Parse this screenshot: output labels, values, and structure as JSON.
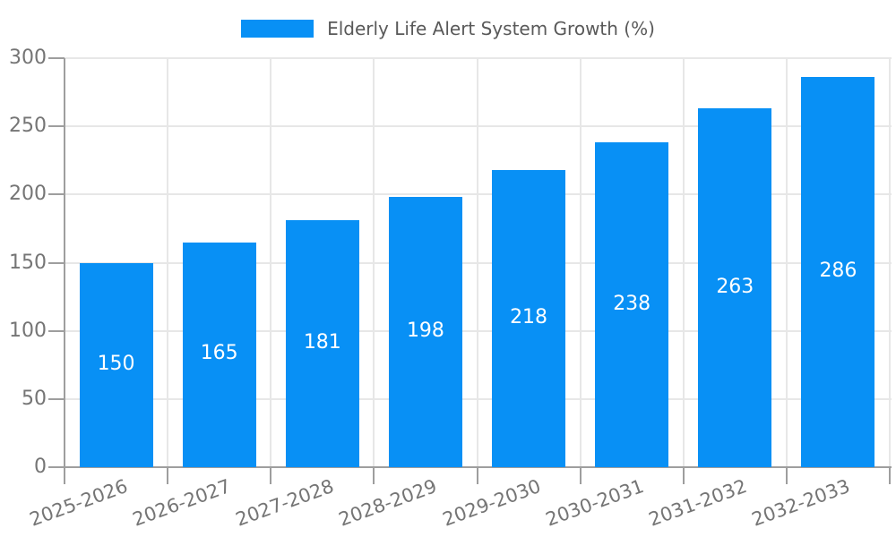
{
  "chart_data": {
    "type": "bar",
    "title": "",
    "legend": "Elderly Life Alert System Growth (%)",
    "legend_position": "top-center",
    "categories": [
      "2025-2026",
      "2026-2027",
      "2027-2028",
      "2028-2029",
      "2029-2030",
      "2030-2031",
      "2031-2032",
      "2032-2033"
    ],
    "values": [
      150,
      165,
      181,
      198,
      218,
      238,
      263,
      286
    ],
    "bar_value_labels": [
      "150",
      "165",
      "181",
      "198",
      "218",
      "238",
      "263",
      "286"
    ],
    "xlabel": "",
    "ylabel": "",
    "ylim": [
      0,
      300
    ],
    "yticks": [
      0,
      50,
      100,
      150,
      200,
      250,
      300
    ],
    "ytick_labels": [
      "0",
      "50",
      "100",
      "150",
      "200",
      "250",
      "300"
    ],
    "grid": true,
    "x_label_rotation_deg": -20,
    "colors": {
      "bar": "#0890F5",
      "grid": "#E7E7E7",
      "axis": "#9E9E9E",
      "tick_text": "#757575",
      "legend_text": "#595959",
      "bar_label_text": "#FFFFFF",
      "background": "#FFFFFF"
    }
  }
}
